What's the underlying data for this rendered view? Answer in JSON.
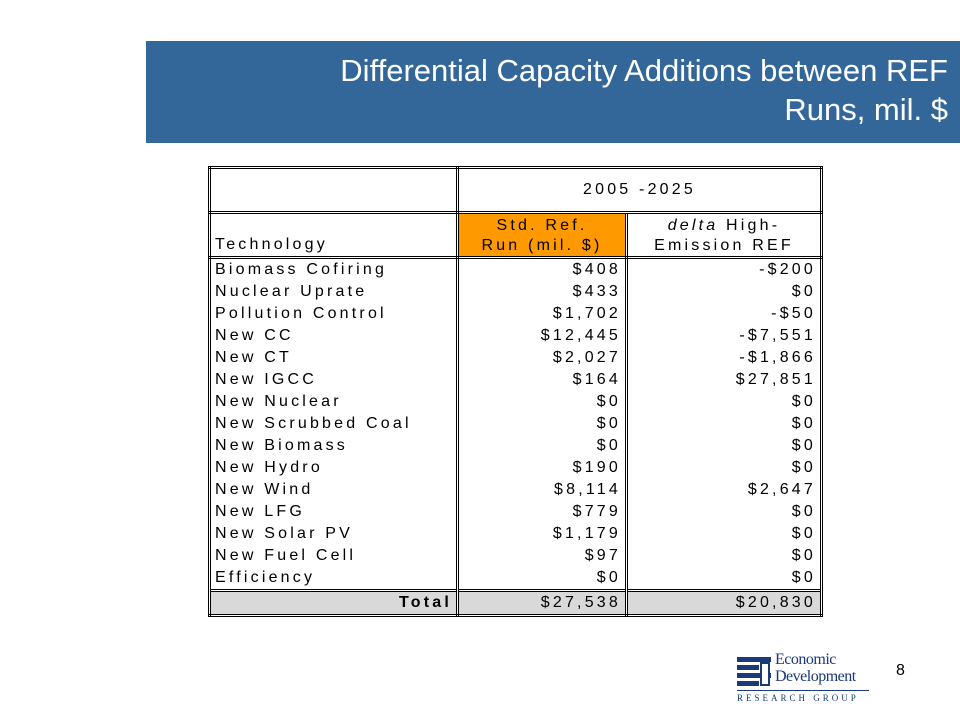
{
  "slide": {
    "title_line1": "Differential Capacity Additions between REF",
    "title_line2": "Runs,  mil. $",
    "page_number": "8",
    "colors": {
      "title_band": "#336699",
      "header_highlight": "#ff9900",
      "total_row": "#d9d9d9"
    }
  },
  "table": {
    "period_header": "2005 -2025",
    "col1_header": "Technology",
    "col2_header_line1": "Std. Ref.",
    "col2_header_line2": "Run (mil. $)",
    "col3_header_italic": "delta",
    "col3_header_line1_rest": " High-",
    "col3_header_line2": "Emission REF",
    "rows": [
      {
        "technology": "Biomass Cofiring",
        "std_ref": "$408",
        "delta": "-$200"
      },
      {
        "technology": "Nuclear Uprate",
        "std_ref": "$433",
        "delta": "$0"
      },
      {
        "technology": "Pollution Control",
        "std_ref": "$1,702",
        "delta": "-$50"
      },
      {
        "technology": "New CC",
        "std_ref": "$12,445",
        "delta": "-$7,551"
      },
      {
        "technology": "New CT",
        "std_ref": "$2,027",
        "delta": "-$1,866"
      },
      {
        "technology": "New IGCC",
        "std_ref": "$164",
        "delta": "$27,851"
      },
      {
        "technology": "New Nuclear",
        "std_ref": "$0",
        "delta": "$0"
      },
      {
        "technology": "New Scrubbed Coal",
        "std_ref": "$0",
        "delta": "$0"
      },
      {
        "technology": "New Biomass",
        "std_ref": "$0",
        "delta": "$0"
      },
      {
        "technology": "New Hydro",
        "std_ref": "$190",
        "delta": "$0"
      },
      {
        "technology": "New Wind",
        "std_ref": "$8,114",
        "delta": "$2,647"
      },
      {
        "technology": "New LFG",
        "std_ref": "$779",
        "delta": "$0"
      },
      {
        "technology": "New Solar PV",
        "std_ref": "$1,179",
        "delta": "$0"
      },
      {
        "technology": "New Fuel Cell",
        "std_ref": "$97",
        "delta": "$0"
      },
      {
        "technology": "Efficiency",
        "std_ref": "$0",
        "delta": "$0"
      }
    ],
    "total": {
      "label": "Total",
      "std_ref": "$27,538",
      "delta": "$20,830"
    }
  },
  "logo": {
    "icon": "edrg-logo-icon",
    "name_line1": "Economic",
    "name_line2": "Development",
    "subtitle": "RESEARCH GROUP"
  }
}
